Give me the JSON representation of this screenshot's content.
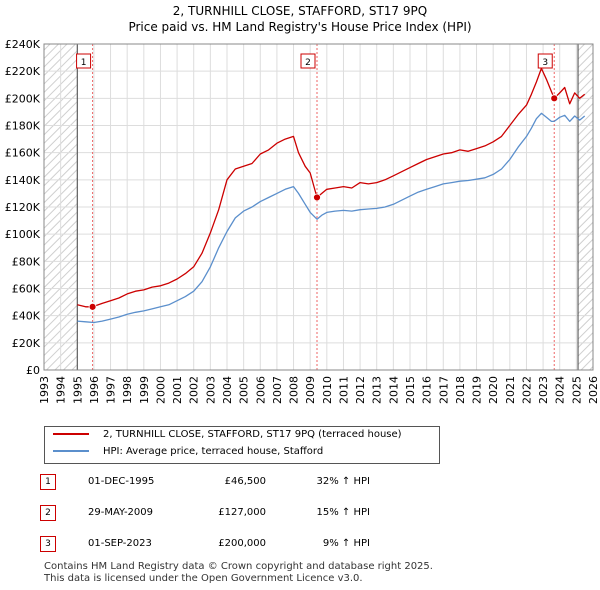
{
  "header": {
    "title": "2, TURNHILL CLOSE, STAFFORD, ST17 9PQ",
    "subtitle": "Price paid vs. HM Land Registry's House Price Index (HPI)"
  },
  "colors": {
    "property": "#cc0000",
    "hpi": "#5b8fcc",
    "shade": "#d8d8d8",
    "grid": "#dddddd",
    "vline": "#ee6666"
  },
  "chart_data": {
    "type": "line",
    "title": "2, TURNHILL CLOSE, STAFFORD, ST17 9PQ",
    "xlim": [
      1993,
      2026
    ],
    "ylim": [
      0,
      240000
    ],
    "y_ticks": [
      0,
      20000,
      40000,
      60000,
      80000,
      100000,
      120000,
      140000,
      160000,
      180000,
      200000,
      220000,
      240000
    ],
    "y_tick_labels": [
      "£0",
      "£20K",
      "£40K",
      "£60K",
      "£80K",
      "£100K",
      "£120K",
      "£140K",
      "£160K",
      "£180K",
      "£200K",
      "£220K",
      "£240K"
    ],
    "x_ticks": [
      "1993",
      "1994",
      "1995",
      "1996",
      "1997",
      "1998",
      "1999",
      "2000",
      "2001",
      "2002",
      "2003",
      "2004",
      "2005",
      "2006",
      "2007",
      "2008",
      "2009",
      "2010",
      "2011",
      "2012",
      "2013",
      "2014",
      "2015",
      "2016",
      "2017",
      "2018",
      "2019",
      "2020",
      "2021",
      "2022",
      "2023",
      "2024",
      "2025",
      "2026"
    ],
    "hatched_before": 1995.0,
    "hatched_after": 2025.1,
    "series": [
      {
        "name": "2, TURNHILL CLOSE, STAFFORD, ST17 9PQ (terraced house)",
        "x": [
          1995.0,
          1995.5,
          1995.92,
          1996.5,
          1997,
          1997.5,
          1998,
          1998.5,
          1999,
          1999.5,
          2000,
          2000.5,
          2001,
          2001.5,
          2002,
          2002.5,
          2003,
          2003.5,
          2004,
          2004.5,
          2005,
          2005.5,
          2006,
          2006.5,
          2007,
          2007.5,
          2008,
          2008.3,
          2008.7,
          2009.0,
          2009.41,
          2009.7,
          2010,
          2010.5,
          2011,
          2011.5,
          2012,
          2012.5,
          2013,
          2013.5,
          2014,
          2014.5,
          2015,
          2015.5,
          2016,
          2016.5,
          2017,
          2017.5,
          2018,
          2018.5,
          2019,
          2019.5,
          2020,
          2020.5,
          2021,
          2021.5,
          2022,
          2022.3,
          2022.6,
          2022.9,
          2023.2,
          2023.5,
          2023.67,
          2024,
          2024.3,
          2024.6,
          2024.9,
          2025.2,
          2025.5
        ],
        "values": [
          48000,
          46500,
          46500,
          49000,
          51000,
          53000,
          56000,
          58000,
          59000,
          61000,
          62000,
          64000,
          67000,
          71000,
          76000,
          86000,
          101000,
          118000,
          140000,
          148000,
          150000,
          152000,
          159000,
          162000,
          167000,
          170000,
          172000,
          160000,
          150000,
          145000,
          127000,
          130000,
          133000,
          134000,
          135000,
          134000,
          138000,
          137000,
          138000,
          140000,
          143000,
          146000,
          149000,
          152000,
          155000,
          157000,
          159000,
          160000,
          162000,
          161000,
          163000,
          165000,
          168000,
          172000,
          180000,
          188000,
          195000,
          203000,
          212000,
          222000,
          214000,
          205000,
          200000,
          204000,
          208000,
          196000,
          204000,
          200000,
          203000
        ]
      },
      {
        "name": "HPI: Average price, terraced house, Stafford",
        "x": [
          1995.0,
          1995.5,
          1996,
          1996.5,
          1997,
          1997.5,
          1998,
          1998.5,
          1999,
          1999.5,
          2000,
          2000.5,
          2001,
          2001.5,
          2002,
          2002.5,
          2003,
          2003.5,
          2004,
          2004.5,
          2005,
          2005.5,
          2006,
          2006.5,
          2007,
          2007.5,
          2008,
          2008.3,
          2008.7,
          2009.0,
          2009.41,
          2009.7,
          2010,
          2010.5,
          2011,
          2011.5,
          2012,
          2012.5,
          2013,
          2013.5,
          2014,
          2014.5,
          2015,
          2015.5,
          2016,
          2016.5,
          2017,
          2017.5,
          2018,
          2018.5,
          2019,
          2019.5,
          2020,
          2020.5,
          2021,
          2021.5,
          2022,
          2022.3,
          2022.6,
          2022.9,
          2023.2,
          2023.5,
          2023.67,
          2024,
          2024.3,
          2024.6,
          2024.9,
          2025.2,
          2025.5
        ],
        "values": [
          36000,
          35500,
          35000,
          36000,
          37500,
          39000,
          41000,
          42500,
          43500,
          45000,
          46500,
          48000,
          51000,
          54000,
          58000,
          65000,
          76000,
          90000,
          102000,
          112000,
          117000,
          120000,
          124000,
          127000,
          130000,
          133000,
          135000,
          130000,
          122000,
          116000,
          111000,
          114000,
          116000,
          117000,
          117500,
          117000,
          118000,
          118500,
          119000,
          120000,
          122000,
          125000,
          128000,
          131000,
          133000,
          135000,
          137000,
          138000,
          139000,
          139500,
          140500,
          141500,
          144000,
          148000,
          155000,
          164000,
          172000,
          178000,
          185000,
          189000,
          186000,
          183000,
          183000,
          186000,
          187500,
          183000,
          187000,
          184000,
          187000
        ]
      }
    ],
    "sales": [
      {
        "label": "1",
        "x": 1995.92,
        "value": 46500
      },
      {
        "label": "2",
        "x": 2009.41,
        "value": 127000
      },
      {
        "label": "3",
        "x": 2023.67,
        "value": 200000
      }
    ]
  },
  "legend": {
    "property": "2, TURNHILL CLOSE, STAFFORD, ST17 9PQ (terraced house)",
    "hpi": "HPI: Average price, terraced house, Stafford"
  },
  "sales_table": [
    {
      "num": "1",
      "date": "01-DEC-1995",
      "price": "£46,500",
      "hpi": "32% ↑ HPI"
    },
    {
      "num": "2",
      "date": "29-MAY-2009",
      "price": "£127,000",
      "hpi": "15% ↑ HPI"
    },
    {
      "num": "3",
      "date": "01-SEP-2023",
      "price": "£200,000",
      "hpi": "9% ↑ HPI"
    }
  ],
  "footer": {
    "line1": "Contains HM Land Registry data © Crown copyright and database right 2025.",
    "line2": "This data is licensed under the Open Government Licence v3.0."
  }
}
